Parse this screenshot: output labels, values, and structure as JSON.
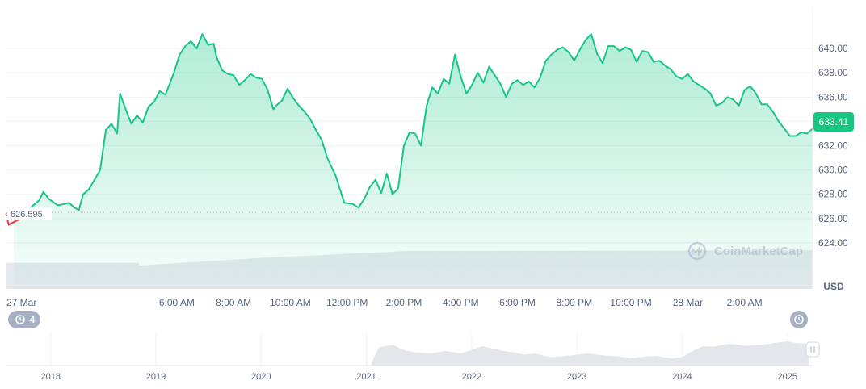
{
  "chart_data": {
    "type": "area",
    "currency": "USD",
    "watermark": "CoinMarketCap",
    "current_price_label": "633.41",
    "open_price_label": "626.595",
    "line_color": "#16c784",
    "below_open_color": "#ea3943",
    "ylim": [
      622.6,
      642.2
    ],
    "y_ticks": [
      624,
      626,
      628,
      630,
      632,
      634,
      636,
      638,
      640
    ],
    "y_tick_labels": [
      "624.00",
      "626.00",
      "628.00",
      "630.00",
      "632.00",
      "",
      "636.00",
      "638.00",
      "640.00"
    ],
    "x_tick_labels": [
      "27 Mar",
      "6:00 AM",
      "8:00 AM",
      "10:00 AM",
      "12:00 PM",
      "2:00 PM",
      "4:00 PM",
      "6:00 PM",
      "8:00 PM",
      "10:00 PM",
      "28 Mar",
      "2:00 AM"
    ],
    "x_tick_hours": [
      0,
      6,
      8,
      10,
      12,
      14,
      16,
      18,
      20,
      22,
      24,
      26
    ],
    "x_range_hours": [
      0,
      28.4
    ],
    "events_badge": "4",
    "series": [
      {
        "x_hours": [
          0.25,
          0.5,
          1.0,
          1.15,
          1.3,
          1.5,
          1.8,
          2.05,
          2.2,
          2.4,
          2.55,
          2.7,
          2.9,
          3.3,
          3.5,
          3.7,
          3.9,
          4.0,
          4.2,
          4.4,
          4.6,
          4.8,
          5.0,
          5.2,
          5.4,
          5.6,
          5.9,
          6.1,
          6.3,
          6.5,
          6.7,
          6.9,
          7.1,
          7.3,
          7.4,
          7.6,
          7.8,
          8.0,
          8.2,
          8.4,
          8.6,
          8.8,
          9.0,
          9.2,
          9.4,
          9.5,
          9.7,
          9.9,
          10.1,
          10.3,
          10.5,
          10.7,
          10.9,
          11.1,
          11.3,
          11.6,
          11.9,
          12.2,
          12.4,
          12.6,
          12.8,
          13.0,
          13.2,
          13.4,
          13.6,
          13.8,
          14.0,
          14.2,
          14.4,
          14.6,
          14.8,
          15.0,
          15.2,
          15.4,
          15.6,
          15.8,
          16.0,
          16.2,
          16.4,
          16.6,
          16.8,
          17.0,
          17.2,
          17.4,
          17.6,
          17.8,
          18.0,
          18.2,
          18.4,
          18.6,
          18.8,
          19.0,
          19.2,
          19.4,
          19.6,
          19.8,
          20.0,
          20.2,
          20.4,
          20.6,
          20.8,
          21.0,
          21.2,
          21.4,
          21.6,
          21.8,
          22.0,
          22.2,
          22.4,
          22.6,
          22.8,
          23.0,
          23.2,
          23.4,
          23.6,
          23.8,
          24.0,
          24.2,
          24.4,
          24.6,
          24.8,
          25.0,
          25.2,
          25.4,
          25.6,
          25.8,
          26.0,
          26.2,
          26.4,
          26.6,
          26.8,
          27.0,
          27.2,
          27.4,
          27.6,
          27.8,
          28.0,
          28.2,
          28.4
        ],
        "values": [
          626.4,
          626.2,
          627.2,
          627.5,
          628.2,
          627.6,
          627.1,
          627.2,
          627.3,
          626.9,
          626.7,
          628.0,
          628.4,
          630.0,
          633.3,
          633.8,
          633.0,
          636.3,
          635.0,
          633.8,
          634.5,
          633.9,
          635.2,
          635.6,
          636.5,
          636.2,
          638.0,
          639.5,
          640.2,
          640.6,
          640.0,
          641.2,
          640.3,
          640.4,
          639.3,
          638.2,
          637.9,
          637.8,
          637.0,
          637.4,
          637.9,
          637.6,
          637.5,
          636.6,
          635.0,
          635.3,
          635.7,
          636.7,
          635.9,
          635.3,
          634.8,
          634.2,
          633.3,
          632.5,
          631.0,
          629.5,
          627.3,
          627.2,
          626.9,
          627.6,
          628.6,
          629.2,
          628.1,
          629.7,
          628.0,
          628.5,
          632.0,
          633.1,
          633.0,
          632.0,
          635.3,
          636.8,
          636.3,
          637.5,
          637.1,
          639.5,
          637.7,
          636.3,
          637.0,
          638.0,
          637.2,
          638.5,
          637.8,
          637.1,
          636.0,
          637.1,
          637.4,
          637.0,
          637.3,
          636.8,
          637.6,
          639.0,
          639.5,
          639.9,
          640.1,
          639.7,
          639.0,
          639.9,
          640.7,
          641.2,
          639.6,
          638.8,
          640.2,
          640.2,
          639.8,
          640.1,
          639.9,
          638.9,
          639.8,
          639.7,
          638.9,
          639.0,
          638.6,
          638.3,
          637.7,
          637.5,
          637.9,
          637.3,
          637.0,
          636.7,
          636.3,
          635.3,
          635.5,
          636.0,
          635.8,
          635.3,
          636.6,
          636.9,
          636.3,
          635.4,
          635.4,
          634.8,
          634.0,
          633.4,
          632.8,
          632.8,
          633.1,
          633.0,
          633.41
        ],
        "line_color": "#16c784"
      },
      {
        "x_hours": [
          0.0,
          0.08,
          0.25,
          0.5
        ],
        "values": [
          626.2,
          625.5,
          625.7,
          626.0
        ],
        "line_color": "#ea3943"
      }
    ],
    "volume": {
      "x_hours": [
        0,
        4.6,
        4.7,
        9.0,
        11.0,
        12.0,
        13.5,
        14.0,
        28.4
      ],
      "values": [
        0.62,
        0.62,
        0.56,
        0.74,
        0.8,
        0.84,
        0.88,
        0.9,
        0.92
      ]
    },
    "navigator": {
      "year_labels": [
        "2018",
        "2019",
        "2020",
        "2021",
        "2022",
        "2023",
        "2024",
        "2025"
      ],
      "year_positions": [
        2018,
        2019,
        2020,
        2021,
        2022,
        2023,
        2024,
        2025
      ],
      "x_range_years": [
        2017.58,
        2025.24
      ],
      "history_years": [
        2021.05,
        2021.12,
        2021.25,
        2021.35,
        2021.45,
        2021.6,
        2021.75,
        2021.9,
        2022.0,
        2022.1,
        2022.2,
        2022.3,
        2022.4,
        2022.5,
        2022.6,
        2022.75,
        2022.9,
        2023.0,
        2023.1,
        2023.25,
        2023.4,
        2023.5,
        2023.6,
        2023.75,
        2023.9,
        2024.0,
        2024.1,
        2024.2,
        2024.3,
        2024.45,
        2024.6,
        2024.75,
        2024.9,
        2025.0,
        2025.1,
        2025.2
      ],
      "history_values": [
        0.15,
        0.75,
        0.85,
        0.65,
        0.55,
        0.5,
        0.6,
        0.5,
        0.65,
        0.8,
        0.7,
        0.6,
        0.55,
        0.45,
        0.5,
        0.35,
        0.4,
        0.45,
        0.5,
        0.42,
        0.38,
        0.3,
        0.35,
        0.4,
        0.3,
        0.35,
        0.6,
        0.8,
        0.78,
        0.9,
        0.82,
        0.85,
        0.95,
        1.0,
        0.92,
        0.9
      ]
    }
  }
}
